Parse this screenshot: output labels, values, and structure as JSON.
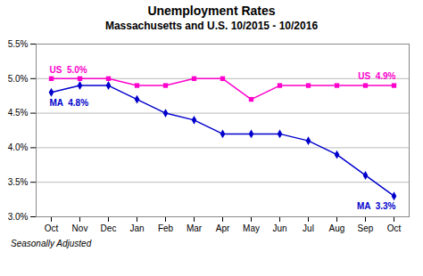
{
  "chart_data": {
    "type": "line",
    "title": "Unemployment Rates",
    "subtitle": "Massachusetts and U.S. 10/2015 - 10/2016",
    "caption": "Seasonally Adjusted",
    "categories": [
      "Oct",
      "Nov",
      "Dec",
      "Jan",
      "Feb",
      "Mar",
      "Apr",
      "May",
      "Jun",
      "Jul",
      "Aug",
      "Sep",
      "Oct"
    ],
    "series": [
      {
        "name": "MA",
        "color": "#0000cc",
        "marker": "diamond",
        "values": [
          4.8,
          4.9,
          4.9,
          4.7,
          4.5,
          4.4,
          4.2,
          4.2,
          4.2,
          4.1,
          3.9,
          3.6,
          3.3
        ]
      },
      {
        "name": "US",
        "color": "#ff00cc",
        "marker": "square",
        "values": [
          5.0,
          5.0,
          5.0,
          4.9,
          4.9,
          5.0,
          5.0,
          4.7,
          4.9,
          4.9,
          4.9,
          4.9,
          4.9
        ]
      }
    ],
    "ylim": [
      3.0,
      5.5
    ],
    "yticks": [
      {
        "value": 3.0,
        "label": "3.0%"
      },
      {
        "value": 3.5,
        "label": "3.5%"
      },
      {
        "value": 4.0,
        "label": "4.0%"
      },
      {
        "value": 4.5,
        "label": "4.5%"
      },
      {
        "value": 5.0,
        "label": "5.0%"
      },
      {
        "value": 5.5,
        "label": "5.5%"
      }
    ],
    "grid": true,
    "annotations": [
      {
        "text": "US  5.0%",
        "series": "US",
        "x": 0
      },
      {
        "text": "MA  4.8%",
        "series": "MA",
        "x": 0
      },
      {
        "text": "US  4.9%",
        "series": "US",
        "x": 12
      },
      {
        "text": "MA  3.3%",
        "series": "MA",
        "x": 12
      }
    ]
  }
}
